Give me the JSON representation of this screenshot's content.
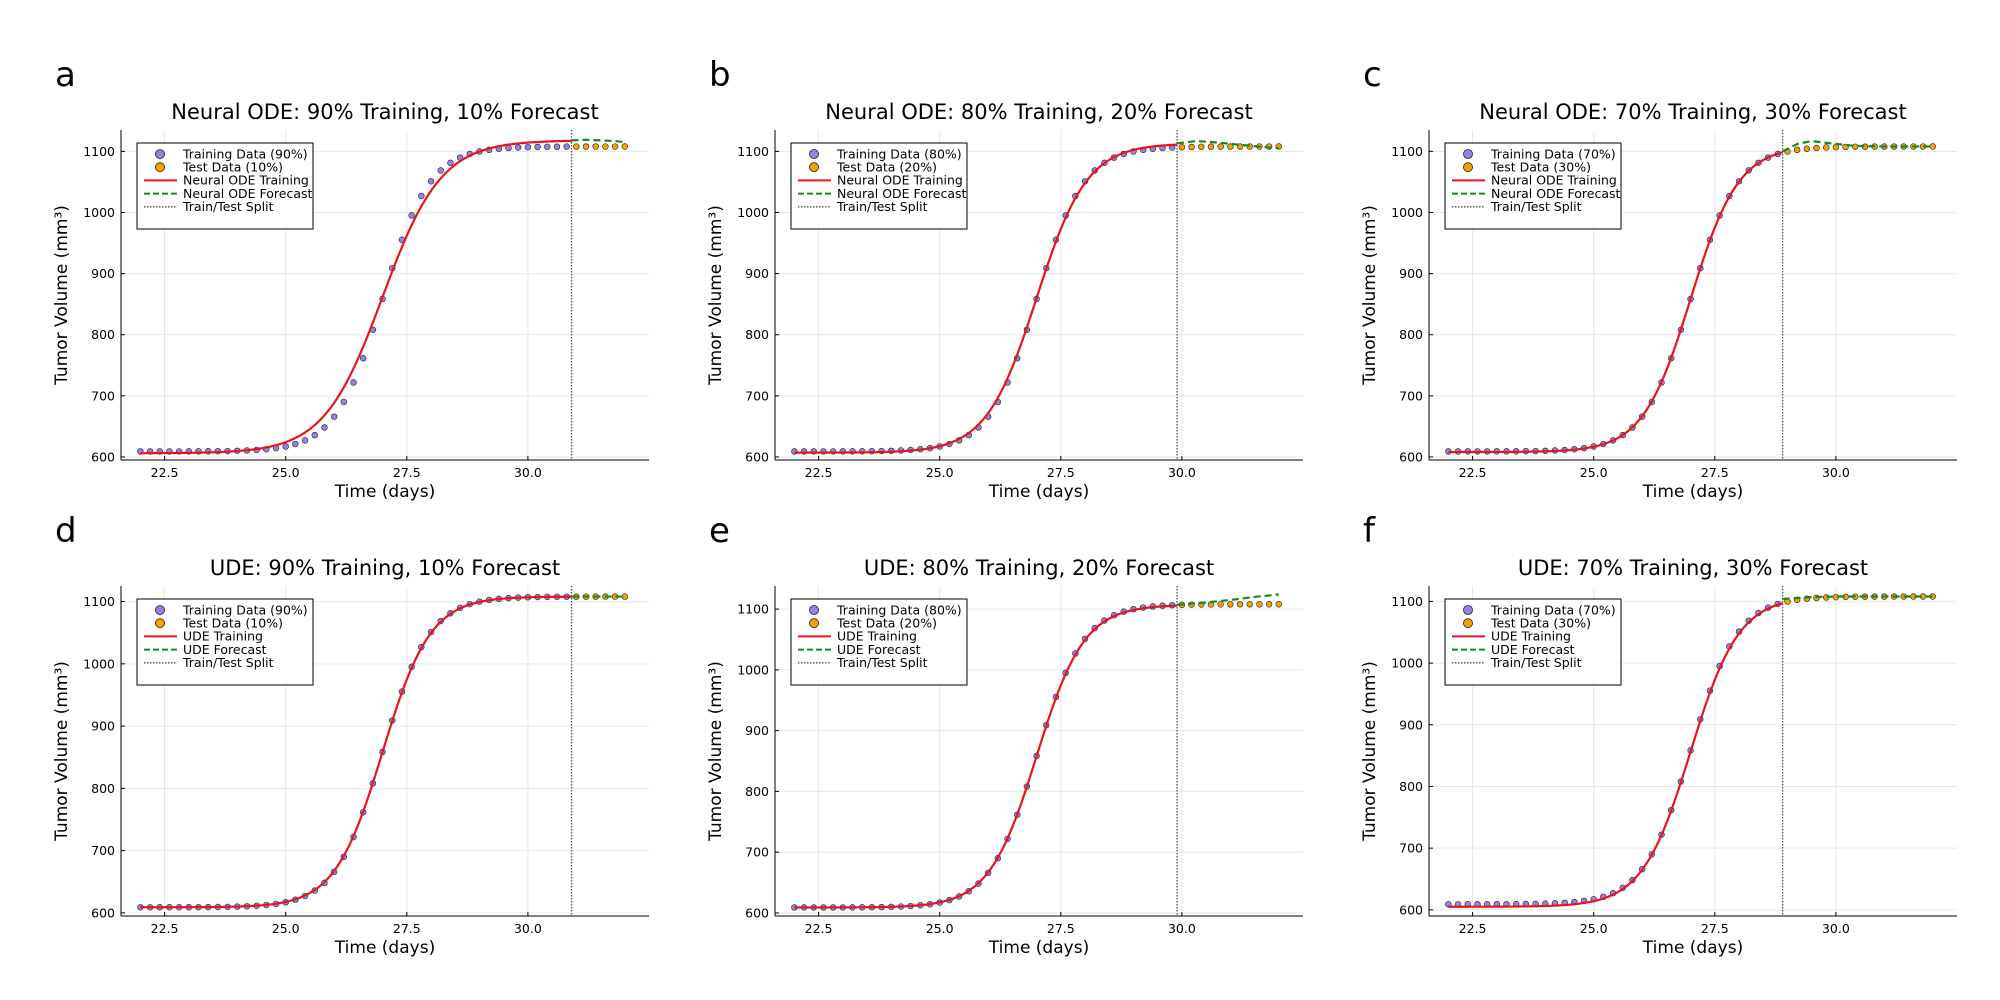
{
  "chart_data": [
    {
      "panel": "a",
      "type": "scatter",
      "title": "Neural ODE: 90% Training, 10% Forecast",
      "xlabel": "Time (days)",
      "ylabel": "Tumor Volume (mm³)",
      "xlim": [
        21.6,
        32.5
      ],
      "ylim": [
        595,
        1135
      ],
      "xticks": [
        22.5,
        25.0,
        27.5,
        30.0
      ],
      "xtick_labels": [
        "22.5",
        "25.0",
        "27.5",
        "30.0"
      ],
      "yticks": [
        600,
        700,
        800,
        900,
        1000,
        1100
      ],
      "ytick_labels": [
        "600",
        "700",
        "800",
        "900",
        "1000",
        "1100"
      ],
      "grid": true,
      "legend_position": "top-left",
      "split": 30.9,
      "data_curve": {
        "start": 22.0,
        "end": 32.0,
        "step": 0.2,
        "low": 609,
        "high": 1108,
        "mid": 27.0,
        "rate": 2.05
      },
      "fit_curve": {
        "low": 606,
        "high": 1118,
        "mid": 27.0,
        "rate": 1.65
      },
      "forecast_curve": {
        "points": [
          [
            30.9,
            1118
          ],
          [
            31.2,
            1119
          ],
          [
            31.5,
            1118
          ],
          [
            31.8,
            1117
          ],
          [
            32.0,
            1115
          ]
        ]
      },
      "legend": [
        "Training Data (90%)",
        "Test Data (10%)",
        "Neural ODE Training",
        "Neural ODE Forecast",
        "Train/Test Split"
      ]
    },
    {
      "panel": "b",
      "type": "scatter",
      "title": "Neural ODE: 80% Training, 20% Forecast",
      "xlabel": "Time (days)",
      "ylabel": "Tumor Volume (mm³)",
      "xlim": [
        21.6,
        32.5
      ],
      "ylim": [
        595,
        1135
      ],
      "xticks": [
        22.5,
        25.0,
        27.5,
        30.0
      ],
      "xtick_labels": [
        "22.5",
        "25.0",
        "27.5",
        "30.0"
      ],
      "yticks": [
        600,
        700,
        800,
        900,
        1000,
        1100
      ],
      "ytick_labels": [
        "600",
        "700",
        "800",
        "900",
        "1000",
        "1100"
      ],
      "grid": true,
      "legend_position": "top-left",
      "split": 29.9,
      "data_curve": {
        "start": 22.0,
        "end": 32.0,
        "step": 0.2,
        "low": 609,
        "high": 1108,
        "mid": 27.0,
        "rate": 2.05
      },
      "fit_curve": {
        "low": 607,
        "high": 1113,
        "mid": 27.0,
        "rate": 1.92
      },
      "forecast_curve": {
        "points": [
          [
            29.9,
            1113
          ],
          [
            30.3,
            1117
          ],
          [
            30.8,
            1114
          ],
          [
            31.3,
            1110
          ],
          [
            31.7,
            1107
          ],
          [
            32.0,
            1105
          ]
        ]
      },
      "legend": [
        "Training Data (80%)",
        "Test Data (20%)",
        "Neural ODE Training",
        "Neural ODE Forecast",
        "Train/Test Split"
      ]
    },
    {
      "panel": "c",
      "type": "scatter",
      "title": "Neural ODE: 70% Training, 30% Forecast",
      "xlabel": "Time (days)",
      "ylabel": "Tumor Volume (mm³)",
      "xlim": [
        21.6,
        32.5
      ],
      "ylim": [
        595,
        1135
      ],
      "xticks": [
        22.5,
        25.0,
        27.5,
        30.0
      ],
      "xtick_labels": [
        "22.5",
        "25.0",
        "27.5",
        "30.0"
      ],
      "yticks": [
        600,
        700,
        800,
        900,
        1000,
        1100
      ],
      "ytick_labels": [
        "600",
        "700",
        "800",
        "900",
        "1000",
        "1100"
      ],
      "grid": true,
      "legend_position": "top-left",
      "split": 28.9,
      "data_curve": {
        "start": 22.0,
        "end": 32.0,
        "step": 0.2,
        "low": 609,
        "high": 1108,
        "mid": 27.0,
        "rate": 2.05
      },
      "fit_curve": {
        "low": 608,
        "high": 1109,
        "mid": 27.0,
        "rate": 2.02
      },
      "forecast_curve": {
        "points": [
          [
            28.9,
            1100
          ],
          [
            29.2,
            1112
          ],
          [
            29.5,
            1117
          ],
          [
            29.9,
            1113
          ],
          [
            30.4,
            1109
          ],
          [
            31.0,
            1108
          ],
          [
            32.0,
            1108
          ]
        ]
      },
      "legend": [
        "Training Data (70%)",
        "Test Data (30%)",
        "Neural ODE Training",
        "Neural ODE Forecast",
        "Train/Test Split"
      ]
    },
    {
      "panel": "d",
      "type": "scatter",
      "title": "UDE: 90% Training, 10% Forecast",
      "xlabel": "Time (days)",
      "ylabel": "Tumor Volume (mm³)",
      "xlim": [
        21.6,
        32.5
      ],
      "ylim": [
        595,
        1125
      ],
      "xticks": [
        22.5,
        25.0,
        27.5,
        30.0
      ],
      "xtick_labels": [
        "22.5",
        "25.0",
        "27.5",
        "30.0"
      ],
      "yticks": [
        600,
        700,
        800,
        900,
        1000,
        1100
      ],
      "ytick_labels": [
        "600",
        "700",
        "800",
        "900",
        "1000",
        "1100"
      ],
      "grid": true,
      "legend_position": "top-left",
      "split": 30.9,
      "data_curve": {
        "start": 22.0,
        "end": 32.0,
        "step": 0.2,
        "low": 609,
        "high": 1108,
        "mid": 27.0,
        "rate": 2.05
      },
      "fit_curve": {
        "low": 609,
        "high": 1108,
        "mid": 27.0,
        "rate": 2.02
      },
      "forecast_curve": {
        "points": [
          [
            30.9,
            1108
          ],
          [
            31.5,
            1108
          ],
          [
            32.0,
            1108
          ]
        ]
      },
      "legend": [
        "Training Data (90%)",
        "Test Data (10%)",
        "UDE Training",
        "UDE Forecast",
        "Train/Test Split"
      ]
    },
    {
      "panel": "e",
      "type": "scatter",
      "title": "UDE: 80% Training, 20% Forecast",
      "xlabel": "Time (days)",
      "ylabel": "Tumor Volume (mm³)",
      "xlim": [
        21.6,
        32.5
      ],
      "ylim": [
        595,
        1138
      ],
      "xticks": [
        22.5,
        25.0,
        27.5,
        30.0
      ],
      "xtick_labels": [
        "22.5",
        "25.0",
        "27.5",
        "30.0"
      ],
      "yticks": [
        600,
        700,
        800,
        900,
        1000,
        1100
      ],
      "ytick_labels": [
        "600",
        "700",
        "800",
        "900",
        "1000",
        "1100"
      ],
      "grid": true,
      "legend_position": "top-left",
      "split": 29.9,
      "data_curve": {
        "start": 22.0,
        "end": 32.0,
        "step": 0.2,
        "low": 609,
        "high": 1108,
        "mid": 27.0,
        "rate": 2.05
      },
      "fit_curve": {
        "low": 609,
        "high": 1107,
        "mid": 27.0,
        "rate": 2.03
      },
      "forecast_curve": {
        "points": [
          [
            29.9,
            1107
          ],
          [
            30.5,
            1111
          ],
          [
            31.0,
            1115
          ],
          [
            31.5,
            1120
          ],
          [
            32.0,
            1124
          ]
        ]
      },
      "legend": [
        "Training Data (80%)",
        "Test Data (20%)",
        "UDE Training",
        "UDE Forecast",
        "Train/Test Split"
      ]
    },
    {
      "panel": "f",
      "type": "scatter",
      "title": "UDE: 70% Training, 30% Forecast",
      "xlabel": "Time (days)",
      "ylabel": "Tumor Volume (mm³)",
      "xlim": [
        21.6,
        32.5
      ],
      "ylim": [
        590,
        1125
      ],
      "xticks": [
        22.5,
        25.0,
        27.5,
        30.0
      ],
      "xtick_labels": [
        "22.5",
        "25.0",
        "27.5",
        "30.0"
      ],
      "yticks": [
        600,
        700,
        800,
        900,
        1000,
        1100
      ],
      "ytick_labels": [
        "600",
        "700",
        "800",
        "900",
        "1000",
        "1100"
      ],
      "grid": true,
      "legend_position": "top-left",
      "split": 28.9,
      "data_curve": {
        "start": 22.0,
        "end": 32.0,
        "step": 0.2,
        "low": 609,
        "high": 1108,
        "mid": 27.0,
        "rate": 2.05
      },
      "fit_curve": {
        "low": 605,
        "high": 1108,
        "mid": 27.0,
        "rate": 2.0
      },
      "forecast_curve": {
        "points": [
          [
            28.9,
            1104
          ],
          [
            29.5,
            1107
          ],
          [
            30.0,
            1108
          ],
          [
            31.0,
            1108
          ],
          [
            32.0,
            1108
          ]
        ]
      },
      "legend": [
        "Training Data (70%)",
        "Test Data (30%)",
        "UDE Training",
        "UDE Forecast",
        "Train/Test Split"
      ]
    }
  ],
  "colors": {
    "training_data": "#9a80e6",
    "test_data": "#f5a100",
    "fit_line": "#e8141c",
    "forecast_line": "#14891e",
    "split_line": "#555555",
    "marker_edge": "#222222"
  }
}
